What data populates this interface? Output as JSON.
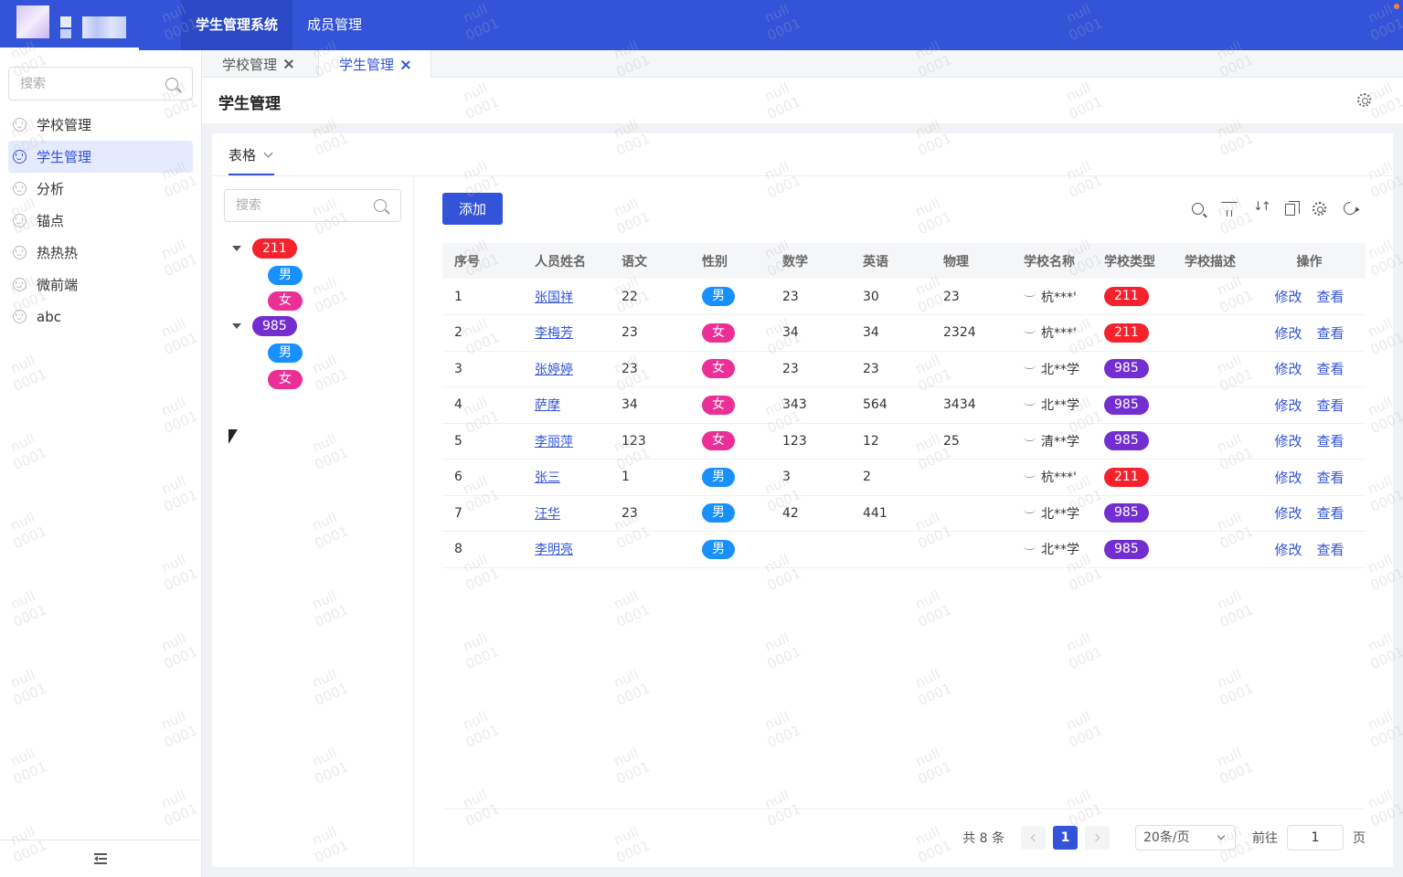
{
  "topbar": {
    "nav": [
      {
        "label": "学生管理系统",
        "active": true
      },
      {
        "label": "成员管理",
        "active": false
      }
    ],
    "accent_color": "#3353d8"
  },
  "sidebar": {
    "search_placeholder": "搜索",
    "items": [
      {
        "label": "学校管理",
        "active": false
      },
      {
        "label": "学生管理",
        "active": true
      },
      {
        "label": "分析",
        "active": false
      },
      {
        "label": "锚点",
        "active": false
      },
      {
        "label": "热热热",
        "active": false
      },
      {
        "label": "微前端",
        "active": false
      },
      {
        "label": "abc",
        "active": false
      }
    ]
  },
  "tabs": [
    {
      "label": "学校管理",
      "active": false
    },
    {
      "label": "学生管理",
      "active": true
    }
  ],
  "page": {
    "title": "学生管理",
    "view_tab": "表格"
  },
  "tree": {
    "search_placeholder": "搜索",
    "nodes": [
      {
        "label": "211",
        "color": "#f5222d",
        "children": [
          {
            "label": "男",
            "color": "#1890ff"
          },
          {
            "label": "女",
            "color": "#eb2f96"
          }
        ]
      },
      {
        "label": "985",
        "color": "#722ed1",
        "children": [
          {
            "label": "男",
            "color": "#1890ff"
          },
          {
            "label": "女",
            "color": "#eb2f96"
          }
        ]
      }
    ]
  },
  "toolbar": {
    "add_label": "添加"
  },
  "table": {
    "columns": [
      "序号",
      "人员姓名",
      "语文",
      "性别",
      "数学",
      "英语",
      "物理",
      "学校名称",
      "学校类型",
      "学校描述",
      "操作"
    ],
    "rows": [
      {
        "index": "1",
        "name": "张国祥",
        "chinese": "22",
        "gender": "男",
        "math": "23",
        "english": "30",
        "physics": "23",
        "school": "杭***'",
        "type": "211",
        "desc": ""
      },
      {
        "index": "2",
        "name": "李梅芳",
        "chinese": "23",
        "gender": "女",
        "math": "34",
        "english": "34",
        "physics": "2324",
        "school": "杭***'",
        "type": "211",
        "desc": ""
      },
      {
        "index": "3",
        "name": "张婷婷",
        "chinese": "23",
        "gender": "女",
        "math": "23",
        "english": "23",
        "physics": "",
        "school": "北**学",
        "type": "985",
        "desc": ""
      },
      {
        "index": "4",
        "name": "萨摩",
        "chinese": "34",
        "gender": "女",
        "math": "343",
        "english": "564",
        "physics": "3434",
        "school": "北**学",
        "type": "985",
        "desc": ""
      },
      {
        "index": "5",
        "name": "李丽萍",
        "chinese": "123",
        "gender": "女",
        "math": "123",
        "english": "12",
        "physics": "25",
        "school": "清**学",
        "type": "985",
        "desc": ""
      },
      {
        "index": "6",
        "name": "张三",
        "chinese": "1",
        "gender": "男",
        "math": "3",
        "english": "2",
        "physics": "",
        "school": "杭***'",
        "type": "211",
        "desc": ""
      },
      {
        "index": "7",
        "name": "汪华",
        "chinese": "23",
        "gender": "男",
        "math": "42",
        "english": "441",
        "physics": "",
        "school": "北**学",
        "type": "985",
        "desc": ""
      },
      {
        "index": "8",
        "name": "李明亮",
        "chinese": "",
        "gender": "男",
        "math": "",
        "english": "",
        "physics": "",
        "school": "北**学",
        "type": "985",
        "desc": ""
      }
    ],
    "ops": {
      "edit": "修改",
      "view": "查看"
    },
    "gender_colors": {
      "男": "#1890ff",
      "女": "#eb2f96"
    },
    "type_colors": {
      "211": "#f5222d",
      "985": "#722ed1"
    }
  },
  "pager": {
    "total": "共 8 条",
    "current": "1",
    "page_size": "20条/页",
    "goto_label": "前往",
    "goto_value": "1",
    "page_suffix": "页"
  },
  "watermark": {
    "line1": "null",
    "line2": "0001"
  }
}
